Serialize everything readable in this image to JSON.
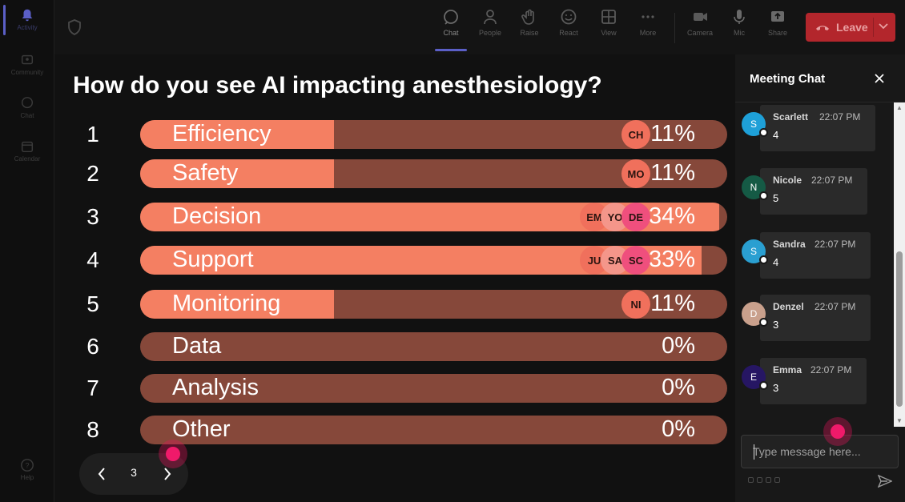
{
  "rail": {
    "items": [
      {
        "id": "activity",
        "label": "Activity",
        "active": true
      },
      {
        "id": "community",
        "label": "Community"
      },
      {
        "id": "chat",
        "label": "Chat"
      },
      {
        "id": "calendar",
        "label": "Calendar"
      },
      {
        "id": "help",
        "label": "Help"
      }
    ]
  },
  "toolbar": {
    "chat": "Chat",
    "people": "People",
    "raise": "Raise",
    "react": "React",
    "view": "View",
    "more": "More",
    "camera": "Camera",
    "mic": "Mic",
    "share": "Share",
    "leave": "Leave"
  },
  "poll": {
    "title": "How do you see AI impacting anesthesiology?",
    "options": [
      {
        "num": "1",
        "label": "Efficiency",
        "percent": 11,
        "pct_label": "11%",
        "voters": [
          "CH"
        ]
      },
      {
        "num": "2",
        "label": "Safety",
        "percent": 11,
        "pct_label": "11%",
        "voters": [
          "MO"
        ]
      },
      {
        "num": "3",
        "label": "Decision",
        "percent": 34,
        "pct_label": "34%",
        "voters": [
          "EM",
          "YO",
          "DE"
        ]
      },
      {
        "num": "4",
        "label": "Support",
        "percent": 33,
        "pct_label": "33%",
        "voters": [
          "JU",
          "SA",
          "SC"
        ]
      },
      {
        "num": "5",
        "label": "Monitoring",
        "percent": 11,
        "pct_label": "11%",
        "voters": [
          "NI"
        ]
      },
      {
        "num": "6",
        "label": "Data",
        "percent": 0,
        "pct_label": "0%",
        "voters": []
      },
      {
        "num": "7",
        "label": "Analysis",
        "percent": 0,
        "pct_label": "0%",
        "voters": []
      },
      {
        "num": "8",
        "label": "Other",
        "percent": 0,
        "pct_label": "0%",
        "voters": []
      }
    ],
    "page": "3"
  },
  "colors": {
    "bar_fill": "#f47f62",
    "bar_track": "#86483a",
    "leave": "#b3262c",
    "accent": "#5b5fc7"
  },
  "chat": {
    "title": "Meeting Chat",
    "input_placeholder": "Type message here...",
    "messages": [
      {
        "initial": "S",
        "name": "Scarlett",
        "time": "22:07 PM",
        "text": "4",
        "avatar_color": "#1ea0d8"
      },
      {
        "initial": "N",
        "name": "Nicole",
        "time": "22:07 PM",
        "text": "5",
        "avatar_color": "#155a45"
      },
      {
        "initial": "S",
        "name": "Sandra",
        "time": "22:07 PM",
        "text": "4",
        "avatar_color": "#2a9fd1"
      },
      {
        "initial": "D",
        "name": "Denzel",
        "time": "22:07 PM",
        "text": "3",
        "avatar_color": "#c9a08c"
      },
      {
        "initial": "E",
        "name": "Emma",
        "time": "22:07 PM",
        "text": "3",
        "avatar_color": "#261663"
      }
    ]
  }
}
